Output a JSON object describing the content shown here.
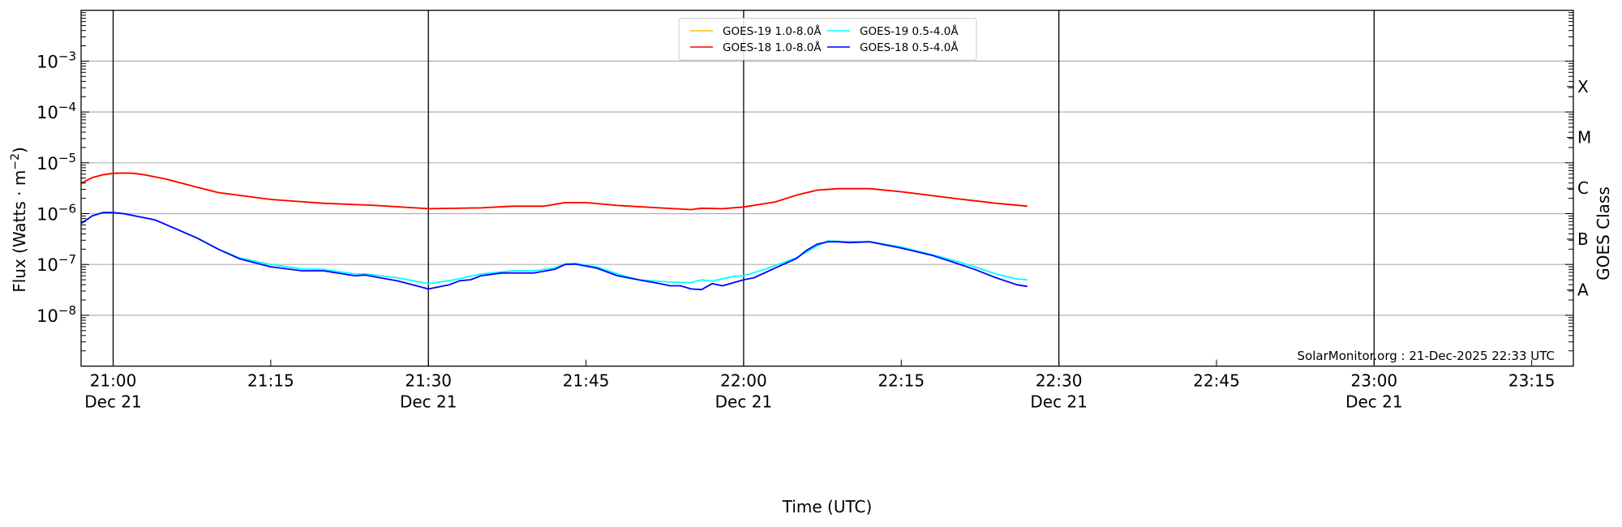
{
  "chart_data": {
    "type": "line",
    "title": "",
    "xlabel": "Time (UTC)",
    "ylabel": "Flux (Watts · m^-2)",
    "ylabel_parts": {
      "main": "Flux (Watts · m",
      "sup": "−2",
      "close": ")"
    },
    "right_ylabel": "GOES Class",
    "yscale": "log",
    "ylim": [
      1e-09,
      0.01
    ],
    "xlim_minutes_from_2100": [
      -3.05,
      138.96
    ],
    "y_ticks": [
      {
        "base": "10",
        "exp": "−3",
        "value": 0.001
      },
      {
        "base": "10",
        "exp": "−4",
        "value": 0.0001
      },
      {
        "base": "10",
        "exp": "−5",
        "value": 1e-05
      },
      {
        "base": "10",
        "exp": "−6",
        "value": 1e-06
      },
      {
        "base": "10",
        "exp": "−7",
        "value": 1e-07
      },
      {
        "base": "10",
        "exp": "−8",
        "value": 1e-08
      }
    ],
    "x_ticks": [
      {
        "minute": 0,
        "label": "21:00",
        "sub": "Dec 21"
      },
      {
        "minute": 15,
        "label": "21:15",
        "sub": ""
      },
      {
        "minute": 30,
        "label": "21:30",
        "sub": "Dec 21"
      },
      {
        "minute": 45,
        "label": "21:45",
        "sub": ""
      },
      {
        "minute": 60,
        "label": "22:00",
        "sub": "Dec 21"
      },
      {
        "minute": 75,
        "label": "22:15",
        "sub": ""
      },
      {
        "minute": 90,
        "label": "22:30",
        "sub": "Dec 21"
      },
      {
        "minute": 105,
        "label": "22:45",
        "sub": ""
      },
      {
        "minute": 120,
        "label": "23:00",
        "sub": "Dec 21"
      },
      {
        "minute": 135,
        "label": "23:15",
        "sub": ""
      }
    ],
    "vertical_lines_minutes": [
      0,
      30,
      60,
      90,
      120
    ],
    "goes_classes": [
      {
        "label": "X",
        "value": 0.000316
      },
      {
        "label": "M",
        "value": 3.16e-05
      },
      {
        "label": "C",
        "value": 3.16e-06
      },
      {
        "label": "B",
        "value": 3.16e-07
      },
      {
        "label": "A",
        "value": 3.16e-08
      }
    ],
    "legend_position": "top-center",
    "watermark": "SolarMonitor.org : 21-Dec-2025 22:33 UTC",
    "series": [
      {
        "name": "GOES-19 1.0-8.0Å",
        "color": "#ffc000",
        "x": [
          -3,
          -2,
          -1,
          0,
          1,
          2,
          3,
          5,
          8,
          10,
          15,
          20,
          25,
          30,
          35,
          38,
          41,
          43,
          45,
          48,
          52,
          55,
          56,
          58,
          60,
          63,
          65,
          67,
          69,
          72,
          75,
          80,
          84,
          87
        ],
        "y": [
          4e-06,
          5.1e-06,
          5.8e-06,
          6.2e-06,
          6.3e-06,
          6.2e-06,
          5.8e-06,
          4.8e-06,
          3.3e-06,
          2.6e-06,
          1.9e-06,
          1.6e-06,
          1.45e-06,
          1.25e-06,
          1.3e-06,
          1.4e-06,
          1.4e-06,
          1.65e-06,
          1.65e-06,
          1.45e-06,
          1.3e-06,
          1.2e-06,
          1.28e-06,
          1.25e-06,
          1.35e-06,
          1.7e-06,
          2.3e-06,
          2.9e-06,
          3.1e-06,
          3.1e-06,
          2.7e-06,
          2e-06,
          1.6e-06,
          1.4e-06
        ]
      },
      {
        "name": "GOES-18 1.0-8.0Å",
        "color": "#ff0000",
        "x": [
          -3,
          -2,
          -1,
          0,
          1,
          2,
          3,
          5,
          8,
          10,
          15,
          20,
          25,
          30,
          35,
          38,
          41,
          43,
          45,
          48,
          52,
          55,
          56,
          58,
          60,
          63,
          65,
          67,
          69,
          72,
          75,
          80,
          84,
          87
        ],
        "y": [
          4e-06,
          5.1e-06,
          5.8e-06,
          6.2e-06,
          6.3e-06,
          6.2e-06,
          5.8e-06,
          4.8e-06,
          3.3e-06,
          2.6e-06,
          1.9e-06,
          1.6e-06,
          1.45e-06,
          1.25e-06,
          1.3e-06,
          1.4e-06,
          1.4e-06,
          1.65e-06,
          1.65e-06,
          1.45e-06,
          1.3e-06,
          1.2e-06,
          1.28e-06,
          1.25e-06,
          1.35e-06,
          1.7e-06,
          2.3e-06,
          2.9e-06,
          3.1e-06,
          3.1e-06,
          2.7e-06,
          2e-06,
          1.6e-06,
          1.4e-06
        ]
      },
      {
        "name": "GOES-19 0.5-4.0Å",
        "color": "#00ffff",
        "x": [
          -3,
          -2,
          -1,
          0,
          1,
          4,
          6,
          8,
          10,
          12,
          15,
          18,
          20,
          23,
          24,
          27,
          30,
          32,
          33,
          35,
          38,
          40,
          42,
          43,
          44,
          46,
          48,
          50,
          53,
          55,
          56,
          57,
          59,
          60,
          62,
          65,
          67,
          68,
          70,
          72,
          75,
          78,
          80,
          82,
          84,
          86,
          87
        ],
        "y": [
          6.5e-07,
          9e-07,
          1.05e-06,
          1.05e-06,
          1e-06,
          7.5e-07,
          5e-07,
          3.3e-07,
          2e-07,
          1.35e-07,
          1e-07,
          8.2e-08,
          8e-08,
          6.5e-08,
          6.5e-08,
          5.5e-08,
          4.2e-08,
          4.8e-08,
          5.3e-08,
          6.5e-08,
          7.5e-08,
          7.5e-08,
          8.5e-08,
          1.02e-07,
          1.05e-07,
          9e-08,
          6.5e-08,
          5e-08,
          4.5e-08,
          4.4e-08,
          5e-08,
          4.7e-08,
          5.8e-08,
          6e-08,
          8e-08,
          1.35e-07,
          2.3e-07,
          2.9e-07,
          2.8e-07,
          2.8e-07,
          2.2e-07,
          1.55e-07,
          1.2e-07,
          9e-08,
          6.5e-08,
          5.2e-08,
          5e-08
        ]
      },
      {
        "name": "GOES-18 0.5-4.0Å",
        "color": "#0000ff",
        "x": [
          -3,
          -2,
          -1,
          0,
          1,
          4,
          6,
          8,
          10,
          12,
          15,
          18,
          20,
          23,
          24,
          26,
          27,
          30,
          32,
          33,
          34,
          35,
          37,
          40,
          42,
          43,
          44,
          46,
          48,
          50,
          52,
          53,
          54,
          55,
          56,
          57,
          58,
          60,
          61,
          63,
          65,
          66,
          67,
          68,
          69,
          70,
          72,
          75,
          78,
          80,
          82,
          84,
          86,
          87
        ],
        "y": [
          6.5e-07,
          9e-07,
          1.05e-06,
          1.05e-06,
          1e-06,
          7.5e-07,
          5e-07,
          3.3e-07,
          2e-07,
          1.3e-07,
          9e-08,
          7.5e-08,
          7.5e-08,
          6e-08,
          6.2e-08,
          5.2e-08,
          4.8e-08,
          3.3e-08,
          4e-08,
          4.8e-08,
          5e-08,
          6e-08,
          6.8e-08,
          6.8e-08,
          8e-08,
          1e-07,
          1.02e-07,
          8.5e-08,
          6e-08,
          5e-08,
          4.2e-08,
          3.8e-08,
          3.8e-08,
          3.3e-08,
          3.2e-08,
          4.2e-08,
          3.8e-08,
          5e-08,
          5.5e-08,
          8.5e-08,
          1.3e-07,
          1.9e-07,
          2.5e-07,
          2.8e-07,
          2.8e-07,
          2.7e-07,
          2.8e-07,
          2.1e-07,
          1.5e-07,
          1.1e-07,
          8e-08,
          5.5e-08,
          4e-08,
          3.7e-08
        ]
      }
    ]
  }
}
